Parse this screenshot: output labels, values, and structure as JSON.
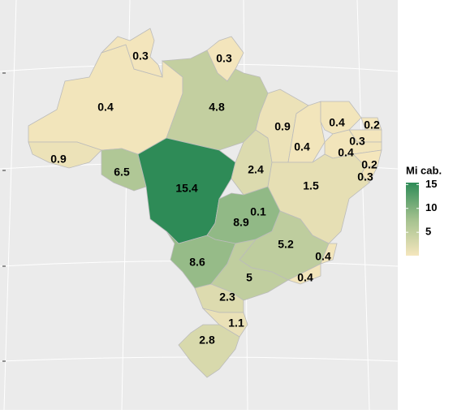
{
  "chart_data": {
    "type": "choropleth",
    "values": [
      0.4,
      0.3,
      0.3,
      4.8,
      0.9,
      6.5,
      15.4,
      2.4,
      0.9,
      0.4,
      0.4,
      0.2,
      0.3,
      0.4,
      0.2,
      0.3,
      1.5,
      0.1,
      8.9,
      5.2,
      0.4,
      0.4,
      8.6,
      5.0,
      2.3,
      1.1,
      2.8
    ],
    "legend_title": "Mi cab.",
    "colorbar_lim": [
      0.1,
      15.4
    ],
    "colorbar_ticks": [
      5,
      10,
      15
    ],
    "colors": [
      "#f5e6bd",
      "#a3c18e",
      "#2e8b57"
    ]
  }
}
